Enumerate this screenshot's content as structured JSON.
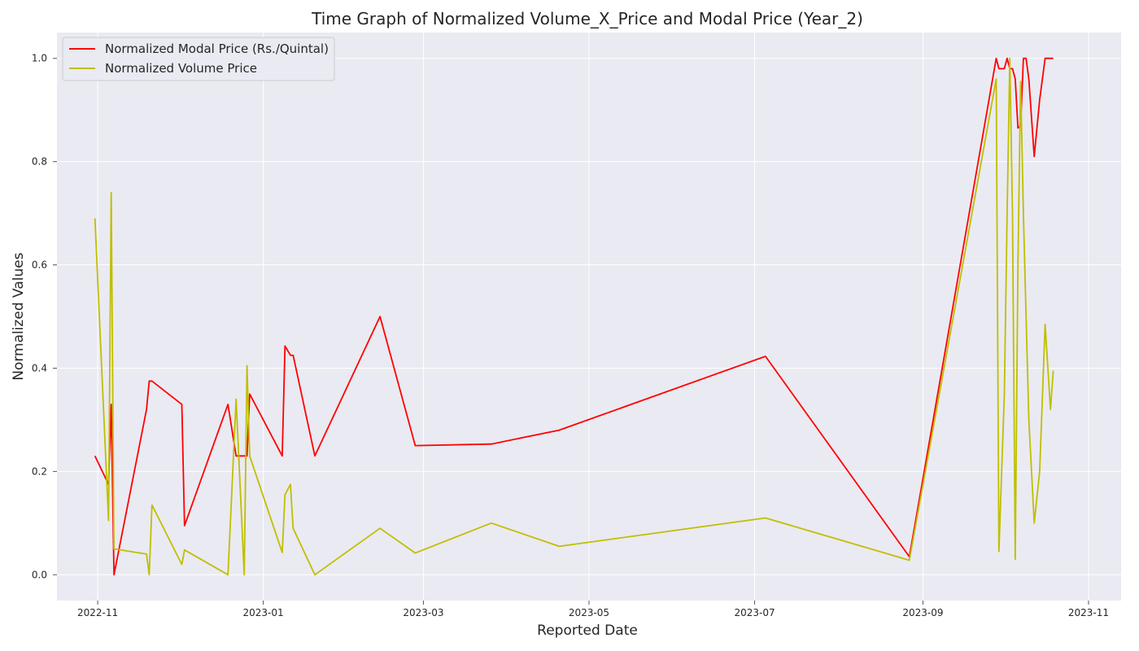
{
  "chart_data": {
    "type": "line",
    "title": "Time Graph of Normalized Volume_X_Price and Modal Price (Year_2)",
    "xlabel": "Reported Date",
    "ylabel": "Normalized Values",
    "x_axis_type": "date",
    "xlim": [
      "2022-10-17",
      "2023-11-13"
    ],
    "ylim": [
      -0.05,
      1.05
    ],
    "x_ticks": [
      "2022-11-01",
      "2023-01-01",
      "2023-03-01",
      "2023-05-01",
      "2023-07-01",
      "2023-09-01",
      "2023-11-01"
    ],
    "x_tick_labels": [
      "2022-11",
      "2023-01",
      "2023-03",
      "2023-05",
      "2023-07",
      "2023-09",
      "2023-11"
    ],
    "y_ticks": [
      0.0,
      0.2,
      0.4,
      0.6,
      0.8,
      1.0
    ],
    "y_tick_labels": [
      "0.0",
      "0.2",
      "0.4",
      "0.6",
      "0.8",
      "1.0"
    ],
    "grid": true,
    "legend_position": "upper-left",
    "colors": {
      "background": "#eaeaf2",
      "grid": "#ffffff",
      "modal": "#ff0000",
      "volume": "#bfbf00"
    },
    "series": [
      {
        "name": "Normalized Modal Price (Rs./Quintal)",
        "color": "#ff0000",
        "x": [
          "2022-10-31",
          "2022-11-05",
          "2022-11-06",
          "2022-11-07",
          "2022-11-19",
          "2022-11-20",
          "2022-11-21",
          "2022-12-02",
          "2022-12-03",
          "2022-12-19",
          "2022-12-22",
          "2022-12-25",
          "2022-12-26",
          "2022-12-27",
          "2023-01-08",
          "2023-01-09",
          "2023-01-11",
          "2023-01-12",
          "2023-01-20",
          "2023-02-13",
          "2023-02-26",
          "2023-03-26",
          "2023-04-20",
          "2023-07-05",
          "2023-08-27",
          "2023-09-28",
          "2023-09-29",
          "2023-10-01",
          "2023-10-02",
          "2023-10-03",
          "2023-10-04",
          "2023-10-05",
          "2023-10-06",
          "2023-10-07",
          "2023-10-08",
          "2023-10-09",
          "2023-10-10",
          "2023-10-12",
          "2023-10-14",
          "2023-10-16",
          "2023-10-18",
          "2023-10-19"
        ],
        "y": [
          0.23,
          0.175,
          0.33,
          0.0,
          0.32,
          0.375,
          0.375,
          0.33,
          0.095,
          0.33,
          0.23,
          0.23,
          0.23,
          0.35,
          0.23,
          0.443,
          0.425,
          0.425,
          0.23,
          0.5,
          0.25,
          0.253,
          0.28,
          0.423,
          0.035,
          1.0,
          0.98,
          0.98,
          1.0,
          0.98,
          0.98,
          0.96,
          0.865,
          0.87,
          1.0,
          1.0,
          0.96,
          0.81,
          0.92,
          1.0,
          1.0,
          1.0
        ]
      },
      {
        "name": "Normalized Volume Price",
        "color": "#bfbf00",
        "x": [
          "2022-10-31",
          "2022-11-05",
          "2022-11-06",
          "2022-11-07",
          "2022-11-19",
          "2022-11-20",
          "2022-11-21",
          "2022-12-02",
          "2022-12-03",
          "2022-12-19",
          "2022-12-22",
          "2022-12-25",
          "2022-12-26",
          "2022-12-27",
          "2023-01-08",
          "2023-01-09",
          "2023-01-11",
          "2023-01-12",
          "2023-01-20",
          "2023-02-13",
          "2023-02-26",
          "2023-03-26",
          "2023-04-20",
          "2023-07-05",
          "2023-08-27",
          "2023-09-28",
          "2023-09-29",
          "2023-10-01",
          "2023-10-02",
          "2023-10-03",
          "2023-10-04",
          "2023-10-05",
          "2023-10-06",
          "2023-10-07",
          "2023-10-08",
          "2023-10-09",
          "2023-10-10",
          "2023-10-12",
          "2023-10-14",
          "2023-10-16",
          "2023-10-18",
          "2023-10-19"
        ],
        "y": [
          0.69,
          0.105,
          0.74,
          0.05,
          0.04,
          0.0,
          0.135,
          0.02,
          0.048,
          0.0,
          0.34,
          0.0,
          0.405,
          0.23,
          0.043,
          0.155,
          0.175,
          0.09,
          0.0,
          0.09,
          0.042,
          0.1,
          0.055,
          0.11,
          0.028,
          0.96,
          0.045,
          0.35,
          0.7,
          1.0,
          0.7,
          0.03,
          0.6,
          0.955,
          0.7,
          0.5,
          0.3,
          0.1,
          0.2,
          0.485,
          0.32,
          0.395
        ]
      }
    ]
  }
}
